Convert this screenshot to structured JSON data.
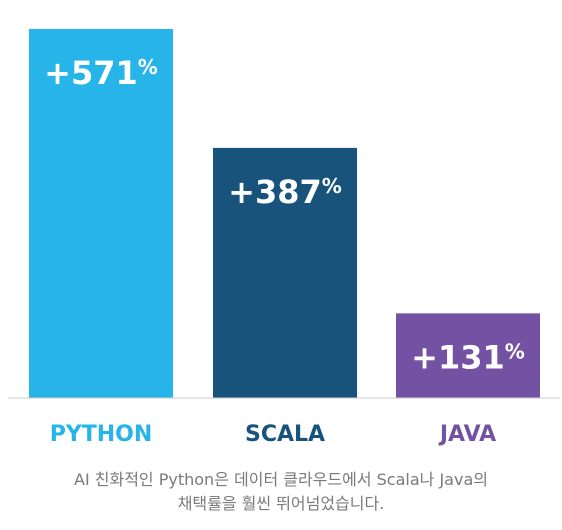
{
  "chart_data": {
    "type": "bar",
    "categories": [
      "PYTHON",
      "SCALA",
      "JAVA"
    ],
    "values": [
      571,
      387,
      131
    ],
    "value_labels": [
      "+571",
      "+387",
      "+131"
    ],
    "value_suffix": "%",
    "colors": [
      "#27b4e8",
      "#18537b",
      "#7352a4"
    ],
    "label_colors": [
      "#27b4e8",
      "#18537b",
      "#7352a4"
    ],
    "axis_color": "#cccccc",
    "grid": false,
    "legend": "none"
  },
  "caption": {
    "line1": "AI 친화적인 Python은 데이터 클라우드에서 Scala나 Java의",
    "line2": "채택률을 훨씬 뛰어넘었습니다."
  }
}
